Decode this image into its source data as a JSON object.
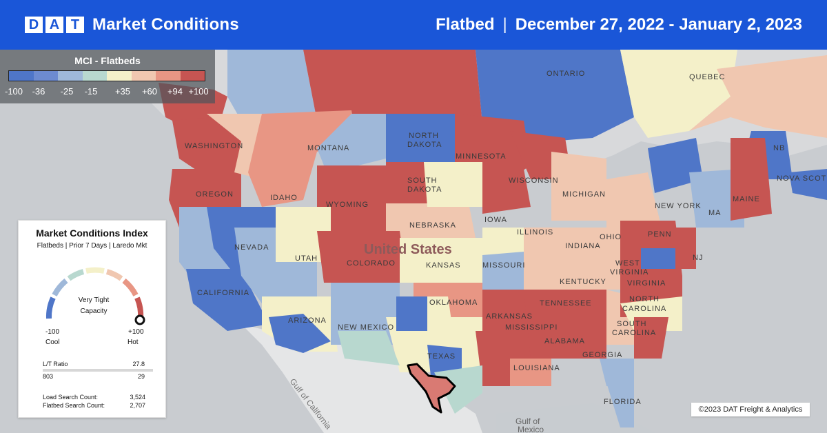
{
  "header": {
    "logo_letters": [
      "D",
      "A",
      "T"
    ],
    "title": "Market Conditions",
    "equipment": "Flatbed",
    "separator": "|",
    "date_range": "December 27, 2022 - January 2, 2023"
  },
  "legend": {
    "title": "MCI - Flatbeds",
    "ticks": [
      "-100",
      "-36",
      "-25",
      "-15",
      "+35",
      "+60",
      "+94",
      "+100"
    ],
    "colors": [
      "#4f76c8",
      "#6d8bd0",
      "#9fb8d9",
      "#b8d8cf",
      "#f4f0c9",
      "#f0c7b0",
      "#e89684",
      "#c65552"
    ]
  },
  "card": {
    "title": "Market Conditions Index",
    "subtitle": "Flatbeds | Prior 7 Days | Laredo Mkt",
    "gauge_status_line1": "Very Tight",
    "gauge_status_line2": "Capacity",
    "gauge_value": 100,
    "left_value": "-100",
    "left_label": "Cool",
    "right_value": "+100",
    "right_label": "Hot",
    "lt_ratio_label": "L/T Ratio",
    "lt_ratio_value": "27.8",
    "lt_left": "803",
    "lt_right": "29",
    "load_search_label": "Load Search Count:",
    "load_search_value": "3,524",
    "flatbed_search_label": "Flatbed Search Count:",
    "flatbed_search_value": "2,707"
  },
  "map": {
    "labels": [
      "ONTARIO",
      "QUEBEC",
      "NORTH",
      "DAKOTA",
      "SOUTH",
      "DAKOTA",
      "WASHINGTON",
      "MONTANA",
      "OREGON",
      "IDAHO",
      "WYOMING",
      "NEBRASKA",
      "IOWA",
      "WISCONSIN",
      "MICHIGAN",
      "MINNESOTA",
      "NEVADA",
      "UTAH",
      "COLORADO",
      "KANSAS",
      "MISSOURI",
      "ILLINOIS",
      "INDIANA",
      "OHIO",
      "PENN",
      "NEW YORK",
      "MA",
      "NJ",
      "VIRGINIA",
      "WEST",
      "VIRGINIA",
      "KENTUCKY",
      "TENNESSEE",
      "NORTH",
      "CAROLINA",
      "SOUTH",
      "CAROLINA",
      "GEORGIA",
      "ALABAMA",
      "MISSISSIPPI",
      "ARKANSAS",
      "LOUISIANA",
      "OKLAHOMA",
      "TEXAS",
      "NEW MEXICO",
      "ARIZONA",
      "CALIFORNIA",
      "FLORIDA",
      "MAINE",
      "NB",
      "NOVA SCOTIA",
      "United States",
      "Gulf of California",
      "Gulf of",
      "Mexico"
    ],
    "copyright": "©2023 DAT Freight & Analytics"
  }
}
